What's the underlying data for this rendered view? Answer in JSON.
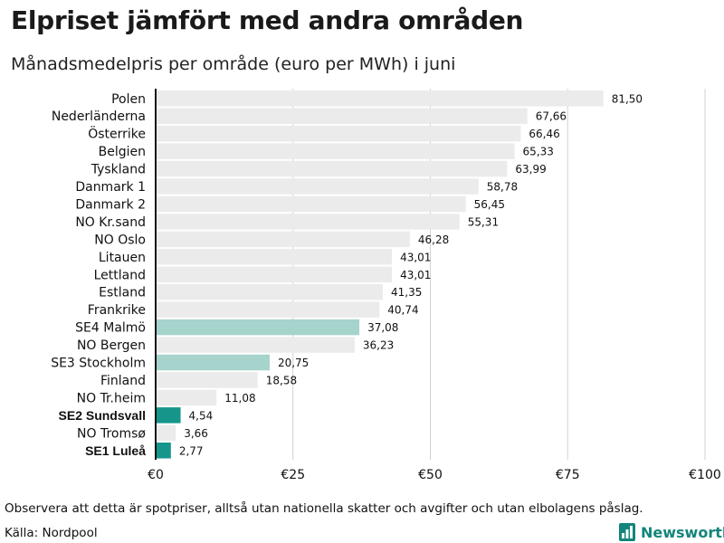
{
  "title": "Elpriset jämfört med andra områden",
  "subtitle": "Månadsmedelpris per område (euro per MWh) i juni",
  "footnote": "Observera att detta är spotpriser, alltså utan nationella skatter och avgifter och utan elbolagens påslag.",
  "source": "Källa: Nordpool",
  "brand": {
    "name": "Newsworthy",
    "icon": "newsworthy-logo-icon",
    "color": "#13857a"
  },
  "chart_data": {
    "type": "bar",
    "orientation": "horizontal",
    "title": "Elpriset jämfört med andra områden",
    "subtitle": "Månadsmedelpris per område (euro per MWh) i juni",
    "xlim": [
      0,
      100
    ],
    "grid": true,
    "xticks": [
      0,
      25,
      50,
      75,
      100
    ],
    "xtick_labels": [
      "€0",
      "€25",
      "€50",
      "€75",
      "€100"
    ],
    "colors": {
      "default": "#ebebeb",
      "se_other": "#a6d3cc",
      "se_highlight": "#16968a"
    },
    "bars": [
      {
        "label": "Polen",
        "value": 81.5,
        "value_label": "81,50",
        "style": "default",
        "bold": false
      },
      {
        "label": "Nederländerna",
        "value": 67.66,
        "value_label": "67,66",
        "style": "default",
        "bold": false
      },
      {
        "label": "Österrike",
        "value": 66.46,
        "value_label": "66,46",
        "style": "default",
        "bold": false
      },
      {
        "label": "Belgien",
        "value": 65.33,
        "value_label": "65,33",
        "style": "default",
        "bold": false
      },
      {
        "label": "Tyskland",
        "value": 63.99,
        "value_label": "63,99",
        "style": "default",
        "bold": false
      },
      {
        "label": "Danmark  1",
        "value": 58.78,
        "value_label": "58,78",
        "style": "default",
        "bold": false
      },
      {
        "label": "Danmark  2",
        "value": 56.45,
        "value_label": "56,45",
        "style": "default",
        "bold": false
      },
      {
        "label": "NO Kr.sand",
        "value": 55.31,
        "value_label": "55,31",
        "style": "default",
        "bold": false
      },
      {
        "label": "NO Oslo",
        "value": 46.28,
        "value_label": "46,28",
        "style": "default",
        "bold": false
      },
      {
        "label": "Litauen",
        "value": 43.01,
        "value_label": "43,01",
        "style": "default",
        "bold": false
      },
      {
        "label": "Lettland",
        "value": 43.01,
        "value_label": "43,01",
        "style": "default",
        "bold": false
      },
      {
        "label": "Estland",
        "value": 41.35,
        "value_label": "41,35",
        "style": "default",
        "bold": false
      },
      {
        "label": "Frankrike",
        "value": 40.74,
        "value_label": "40,74",
        "style": "default",
        "bold": false
      },
      {
        "label": "SE4  Malmö",
        "value": 37.08,
        "value_label": "37,08",
        "style": "se_other",
        "bold": false
      },
      {
        "label": "NO Bergen",
        "value": 36.23,
        "value_label": "36,23",
        "style": "default",
        "bold": false
      },
      {
        "label": "SE3  Stockholm",
        "value": 20.75,
        "value_label": "20,75",
        "style": "se_other",
        "bold": false
      },
      {
        "label": "Finland",
        "value": 18.58,
        "value_label": "18,58",
        "style": "default",
        "bold": false
      },
      {
        "label": "NO Tr.heim",
        "value": 11.08,
        "value_label": "11,08",
        "style": "default",
        "bold": false
      },
      {
        "label": "SE2 Sundsvall",
        "value": 4.54,
        "value_label": "4,54",
        "style": "se_highlight",
        "bold": true
      },
      {
        "label": "NO Tromsø",
        "value": 3.66,
        "value_label": "3,66",
        "style": "default",
        "bold": false
      },
      {
        "label": "SE1 Luleå",
        "value": 2.77,
        "value_label": "2,77",
        "style": "se_highlight",
        "bold": true
      }
    ]
  }
}
